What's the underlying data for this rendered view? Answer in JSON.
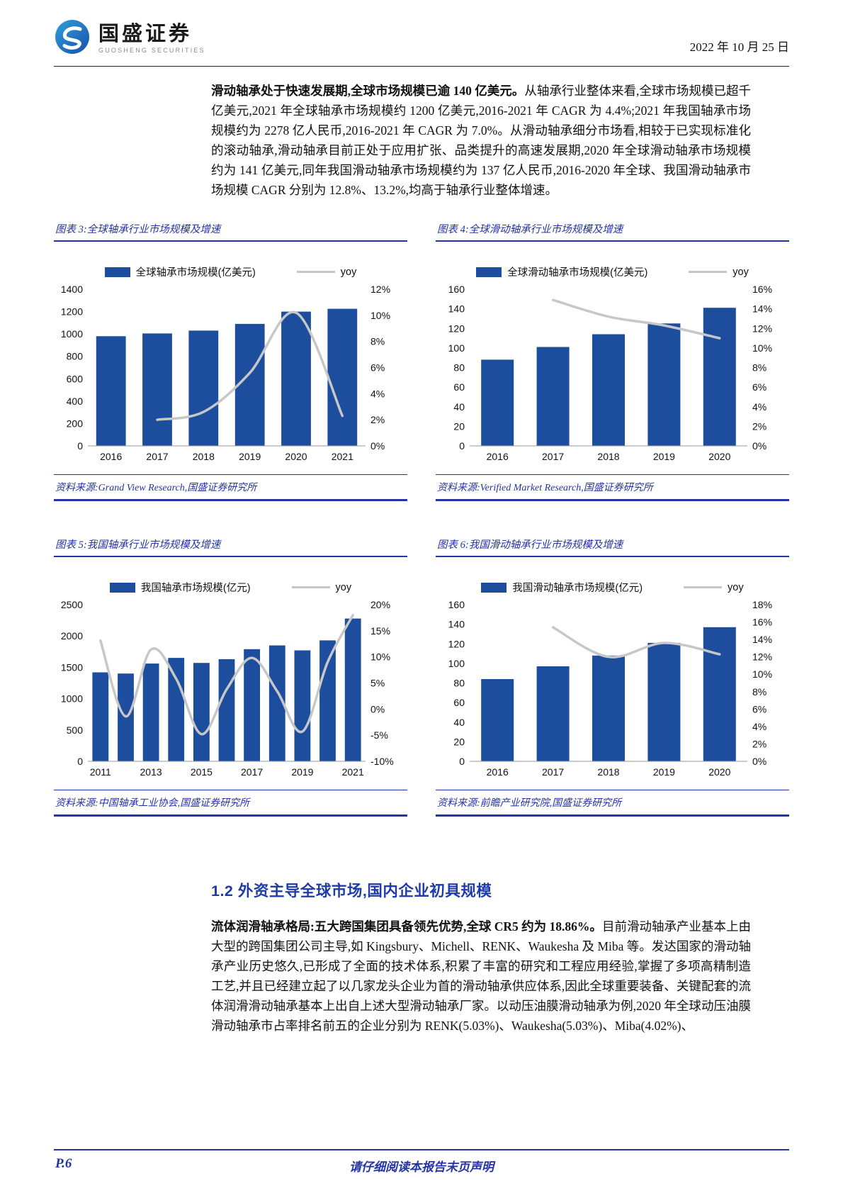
{
  "colors": {
    "accent_blue": "#2433A5",
    "bar_blue": "#1C4E9D",
    "yoy_line_gray": "#C7C7C7",
    "axis_gray": "#9A9A9A",
    "logo_blue": "#1A50A8"
  },
  "header": {
    "logo_cn": "国盛证券",
    "logo_en": "GUOSHENG SECURITIES",
    "date": "2022 年 10 月 25 日"
  },
  "intro": {
    "lead": "滑动轴承处于快速发展期,全球市场规模已逾 140 亿美元。",
    "body": "从轴承行业整体来看,全球市场规模已超千亿美元,2021 年全球轴承市场规模约 1200 亿美元,2016-2021 年 CAGR 为 4.4%;2021 年我国轴承市场规模约为 2278 亿人民币,2016-2021 年 CAGR 为 7.0%。从滑动轴承细分市场看,相较于已实现标准化的滚动轴承,滑动轴承目前正处于应用扩张、品类提升的高速发展期,2020 年全球滑动轴承市场规模约为 141 亿美元,同年我国滑动轴承市场规模约为 137 亿人民币,2016-2020 年全球、我国滑动轴承市场规模 CAGR 分别为 12.8%、13.2%,均高于轴承行业整体增速。"
  },
  "section12": {
    "heading": "1.2 外资主导全球市场,国内企业初具规模",
    "lead": "流体润滑轴承格局:五大跨国集团具备领先优势,全球 CR5 约为 18.86%。",
    "body": "目前滑动轴承产业基本上由大型的跨国集团公司主导,如 Kingsbury、Michell、RENK、Waukesha 及 Miba 等。发达国家的滑动轴承产业历史悠久,已形成了全面的技术体系,积累了丰富的研究和工程应用经验,掌握了多项高精制造工艺,并且已经建立起了以几家龙头企业为首的滑动轴承供应体系,因此全球重要装备、关键配套的流体润滑滑动轴承基本上出自上述大型滑动轴承厂家。以动压油膜滑动轴承为例,2020 年全球动压油膜滑动轴承市占率排名前五的企业分别为 RENK(5.03%)、Waukesha(5.03%)、Miba(4.02%)、"
  },
  "footer": {
    "page_number": "P.6",
    "disclaimer": "请仔细阅读本报告末页声明"
  },
  "chart_data": [
    {
      "type": "bar",
      "title": "图表 3:全球轴承行业市场规模及增速",
      "categories": [
        "2016",
        "2017",
        "2018",
        "2019",
        "2020",
        "2021"
      ],
      "series": [
        {
          "name": "全球轴承市场规模(亿美元)",
          "kind": "bar",
          "axis": "left",
          "values": [
            980,
            1005,
            1030,
            1090,
            1200,
            1225
          ]
        },
        {
          "name": "yoy",
          "kind": "line",
          "axis": "right",
          "values": [
            null,
            2.0,
            2.6,
            5.6,
            10.2,
            2.3
          ]
        }
      ],
      "left_axis": {
        "range": [
          0,
          1400
        ],
        "tick_values": [
          0,
          200,
          400,
          600,
          800,
          1000,
          1200,
          1400
        ],
        "tick_labels": [
          "0",
          "200",
          "400",
          "600",
          "800",
          "1000",
          "1200",
          "1400"
        ]
      },
      "right_axis": {
        "range": [
          0,
          12
        ],
        "tick_values": [
          0,
          2,
          4,
          6,
          8,
          10,
          12
        ],
        "tick_labels": [
          "0%",
          "2%",
          "4%",
          "6%",
          "8%",
          "10%",
          "12%"
        ]
      },
      "x_tick_labels": [
        "2016",
        "2017",
        "2018",
        "2019",
        "2020",
        "2021"
      ],
      "grid": false,
      "legend_position": "top",
      "source": "资料来源:Grand View Research,国盛证券研究所"
    },
    {
      "type": "bar",
      "title": "图表 4:全球滑动轴承行业市场规模及增速",
      "categories": [
        "2016",
        "2017",
        "2018",
        "2019",
        "2020"
      ],
      "series": [
        {
          "name": "全球滑动轴承市场规模(亿美元)",
          "kind": "bar",
          "axis": "left",
          "values": [
            88,
            101,
            114,
            125,
            141
          ]
        },
        {
          "name": "yoy",
          "kind": "line",
          "axis": "right",
          "values": [
            null,
            14.9,
            13.2,
            12.3,
            11.0
          ]
        }
      ],
      "left_axis": {
        "range": [
          0,
          160
        ],
        "tick_values": [
          0,
          20,
          40,
          60,
          80,
          100,
          120,
          140,
          160
        ],
        "tick_labels": [
          "0",
          "20",
          "40",
          "60",
          "80",
          "100",
          "120",
          "140",
          "160"
        ]
      },
      "right_axis": {
        "range": [
          0,
          16
        ],
        "tick_values": [
          0,
          2,
          4,
          6,
          8,
          10,
          12,
          14,
          16
        ],
        "tick_labels": [
          "0%",
          "2%",
          "4%",
          "6%",
          "8%",
          "10%",
          "12%",
          "14%",
          "16%"
        ]
      },
      "x_tick_labels": [
        "2016",
        "2017",
        "2018",
        "2019",
        "2020"
      ],
      "grid": false,
      "legend_position": "top",
      "source": "资料来源:Verified Market Research,国盛证券研究所"
    },
    {
      "type": "bar",
      "title": "图表 5:我国轴承行业市场规模及增速",
      "categories": [
        "2011",
        "2012",
        "2013",
        "2014",
        "2015",
        "2016",
        "2017",
        "2018",
        "2019",
        "2020",
        "2021"
      ],
      "series": [
        {
          "name": "我国轴承市场规模(亿元)",
          "kind": "bar",
          "axis": "left",
          "values": [
            1420,
            1400,
            1560,
            1650,
            1570,
            1630,
            1790,
            1850,
            1770,
            1930,
            2278
          ]
        },
        {
          "name": "yoy",
          "kind": "line",
          "axis": "right",
          "values": [
            13.1,
            -1.4,
            11.4,
            5.8,
            -4.8,
            3.8,
            9.8,
            3.4,
            -4.3,
            9.0,
            18.0
          ]
        }
      ],
      "left_axis": {
        "range": [
          0,
          2500
        ],
        "tick_values": [
          0,
          500,
          1000,
          1500,
          2000,
          2500
        ],
        "tick_labels": [
          "0",
          "500",
          "1000",
          "1500",
          "2000",
          "2500"
        ]
      },
      "right_axis": {
        "range": [
          -10,
          20
        ],
        "tick_values": [
          -10,
          -5,
          0,
          5,
          10,
          15,
          20
        ],
        "tick_labels": [
          "-10%",
          "-5%",
          "0%",
          "5%",
          "10%",
          "15%",
          "20%"
        ]
      },
      "x_tick_labels": [
        "2011",
        "2013",
        "2015",
        "2017",
        "2019",
        "2021"
      ],
      "grid": false,
      "legend_position": "top",
      "source": "资料来源:中国轴承工业协会,国盛证券研究所"
    },
    {
      "type": "bar",
      "title": "图表 6:我国滑动轴承行业市场规模及增速",
      "categories": [
        "2016",
        "2017",
        "2018",
        "2019",
        "2020"
      ],
      "series": [
        {
          "name": "我国滑动轴承市场规模(亿元)",
          "kind": "bar",
          "axis": "left",
          "values": [
            84,
            97,
            108,
            121,
            137
          ]
        },
        {
          "name": "yoy",
          "kind": "line",
          "axis": "right",
          "values": [
            null,
            15.4,
            12.0,
            13.6,
            12.3
          ]
        }
      ],
      "left_axis": {
        "range": [
          0,
          160
        ],
        "tick_values": [
          0,
          20,
          40,
          60,
          80,
          100,
          120,
          140,
          160
        ],
        "tick_labels": [
          "0",
          "20",
          "40",
          "60",
          "80",
          "100",
          "120",
          "140",
          "160"
        ]
      },
      "right_axis": {
        "range": [
          0,
          18
        ],
        "tick_values": [
          0,
          2,
          4,
          6,
          8,
          10,
          12,
          14,
          16,
          18
        ],
        "tick_labels": [
          "0%",
          "2%",
          "4%",
          "6%",
          "8%",
          "10%",
          "12%",
          "14%",
          "16%",
          "18%"
        ]
      },
      "x_tick_labels": [
        "2016",
        "2017",
        "2018",
        "2019",
        "2020"
      ],
      "grid": false,
      "legend_position": "top",
      "source": "资料来源:前瞻产业研究院,国盛证券研究所"
    }
  ]
}
